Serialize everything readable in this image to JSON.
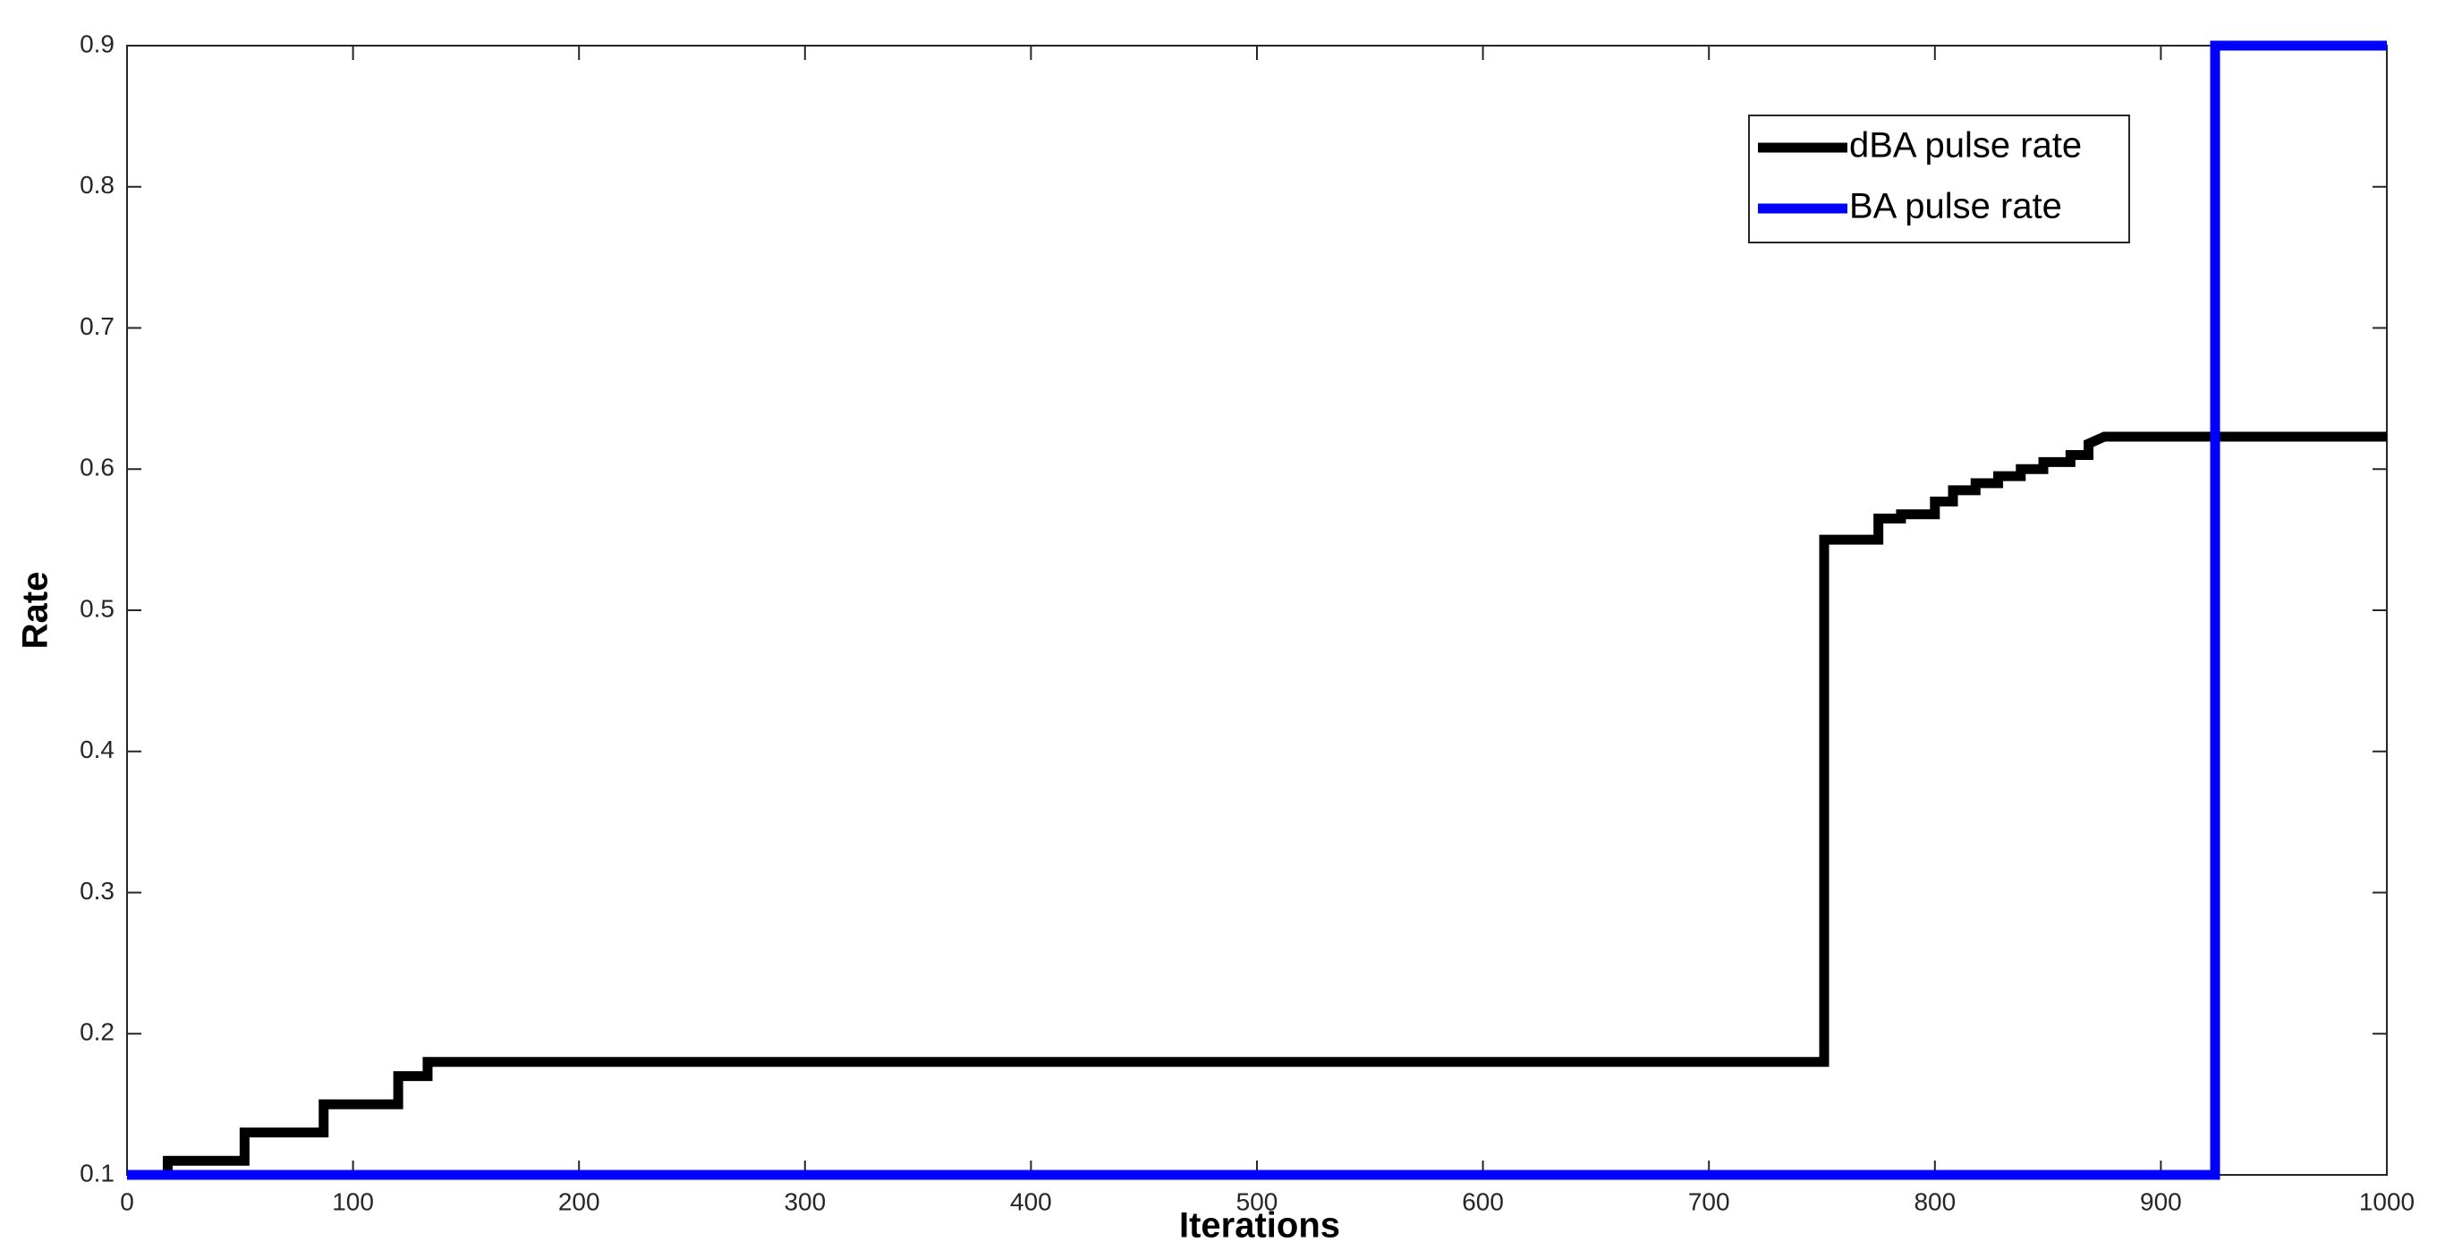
{
  "chart_data": {
    "type": "line",
    "xlabel": "Iterations",
    "ylabel": "Rate",
    "xlim": [
      0,
      1000
    ],
    "xticks": [
      0,
      100,
      200,
      300,
      400,
      500,
      600,
      700,
      800,
      900,
      1000
    ],
    "ylim": [
      0.1,
      0.9
    ],
    "yticks": [
      0.1,
      0.2,
      0.3,
      0.4,
      0.5,
      0.6,
      0.7,
      0.8,
      0.9
    ],
    "grid": false,
    "legend": "upper right",
    "series": [
      {
        "name": "dBA pulse rate",
        "color": "#000000",
        "x": [
          0,
          18,
          18,
          52,
          52,
          87,
          87,
          120,
          120,
          133,
          133,
          751,
          751,
          775,
          775,
          785,
          785,
          800,
          800,
          808,
          808,
          818,
          818,
          828,
          828,
          838,
          838,
          848,
          848,
          860,
          860,
          868,
          868,
          875,
          1000
        ],
        "values": [
          0.1,
          0.1,
          0.11,
          0.11,
          0.13,
          0.13,
          0.15,
          0.15,
          0.17,
          0.17,
          0.18,
          0.18,
          0.55,
          0.55,
          0.565,
          0.565,
          0.568,
          0.568,
          0.577,
          0.577,
          0.585,
          0.585,
          0.59,
          0.59,
          0.595,
          0.595,
          0.6,
          0.6,
          0.605,
          0.605,
          0.61,
          0.61,
          0.618,
          0.623,
          0.623
        ]
      },
      {
        "name": "BA pulse rate",
        "color": "#0000ff",
        "x": [
          0,
          924,
          924,
          1000
        ],
        "values": [
          0.1,
          0.1,
          0.9,
          0.9
        ]
      }
    ]
  }
}
